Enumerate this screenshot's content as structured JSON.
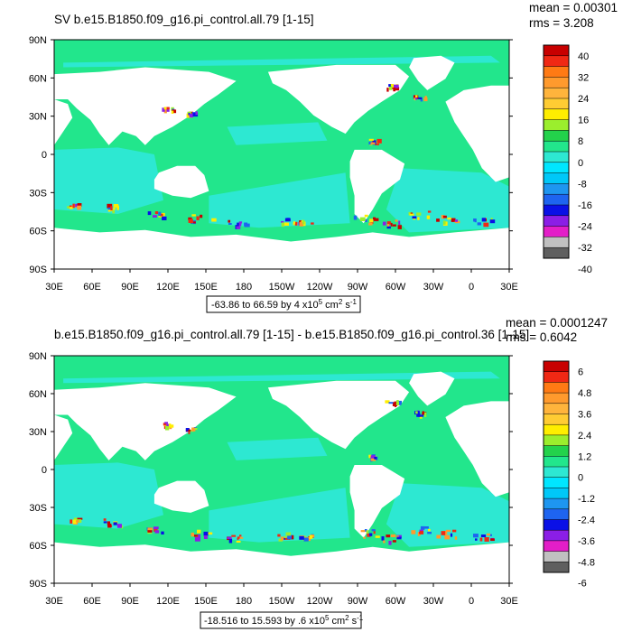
{
  "palette": {
    "levels": [
      "#5f5f5f",
      "#c0c0c0",
      "#e31ec8",
      "#8b1ee6",
      "#0a10e6",
      "#1e64f0",
      "#1e96f0",
      "#00c8f8",
      "#00e6ff",
      "#2de8d2",
      "#22e68c",
      "#23d24b",
      "#9bee2d",
      "#ffee00",
      "#ffcc33",
      "#ffb43c",
      "#ff9a2d",
      "#ff7a14",
      "#f02814",
      "#c80000",
      "#960000"
    ],
    "ocean_main": "#22e68c",
    "ocean_deep": "#2de8d2",
    "land": "#ffffff",
    "frame": "#000000"
  },
  "panels": [
    {
      "title": "SV b.e15.B1850.f09_g16.pi_control.all.79 [1-15]",
      "stats": {
        "mean": "mean = 0.00301",
        "rms": "rms = 3.208"
      },
      "range_label": "-63.86 to 66.59 by 4 x10",
      "range_exp": "5",
      "range_unit": " cm",
      "range_unit_exp": "2",
      "range_unit2": " s",
      "range_unit2_exp": "-1",
      "colorbar_labels": [
        "40",
        "32",
        "24",
        "16",
        "8",
        "0",
        "-8",
        "-16",
        "-24",
        "-32",
        "-40"
      ]
    },
    {
      "title": "b.e15.B1850.f09_g16.pi_control.all.79 [1-15] - b.e15.B1850.f09_g16.pi_control.36 [1-15]",
      "stats": {
        "mean": "mean = 0.0001247",
        "rms": "rms = 0.6042"
      },
      "range_label": "-18.516 to 15.593 by .6 x10",
      "range_exp": "5",
      "range_unit": " cm",
      "range_unit_exp": "2",
      "range_unit2": " s",
      "range_unit2_exp": "-1",
      "colorbar_labels": [
        "6",
        "4.8",
        "3.6",
        "2.4",
        "1.2",
        "0",
        "-1.2",
        "-2.4",
        "-3.6",
        "-4.8",
        "-6"
      ]
    }
  ],
  "lat_labels": [
    "90N",
    "60N",
    "30N",
    "0",
    "30S",
    "60S",
    "90S"
  ],
  "lon_labels": [
    "30E",
    "60E",
    "90E",
    "120E",
    "150E",
    "180",
    "150W",
    "120W",
    "90W",
    "60W",
    "30W",
    "0",
    "30E"
  ]
}
